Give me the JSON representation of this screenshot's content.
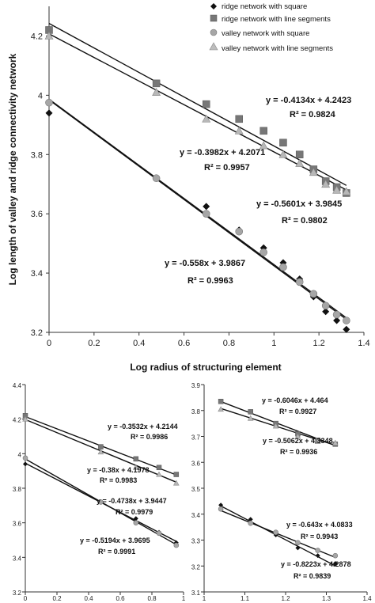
{
  "chart_data": [
    {
      "type": "scatter",
      "title": "",
      "xlabel": "Log radius of structuring element",
      "ylabel": "Log length of valley and ridge connectivity network",
      "xlim": [
        0,
        1.4
      ],
      "ylim": [
        3.2,
        4.3
      ],
      "xticks": [
        "0",
        "0.2",
        "0.4",
        "0.6",
        "0.8",
        "1",
        "1.2",
        "1.4"
      ],
      "yticks": [
        "3.2",
        "3.4",
        "3.6",
        "3.8",
        "4",
        "4.2"
      ],
      "legend": "top-right",
      "series": [
        {
          "name": "ridge network  with square",
          "marker": "diamond",
          "color": "#111111",
          "x": [
            0,
            0.477,
            0.699,
            0.845,
            0.954,
            1.041,
            1.114,
            1.176,
            1.23,
            1.279,
            1.322
          ],
          "y": [
            3.94,
            3.72,
            3.625,
            3.545,
            3.485,
            3.435,
            3.38,
            3.32,
            3.27,
            3.24,
            3.21
          ]
        },
        {
          "name": "ridge network with line segments",
          "marker": "square",
          "color": "#777777",
          "x": [
            0,
            0.477,
            0.699,
            0.845,
            0.954,
            1.041,
            1.114,
            1.176,
            1.23,
            1.279,
            1.322
          ],
          "y": [
            4.22,
            4.04,
            3.97,
            3.92,
            3.88,
            3.84,
            3.8,
            3.75,
            3.71,
            3.69,
            3.67
          ]
        },
        {
          "name": "valley network with square",
          "marker": "circle",
          "color": "#a6a6a6",
          "x": [
            0,
            0.477,
            0.699,
            0.845,
            0.954,
            1.041,
            1.114,
            1.176,
            1.23,
            1.279,
            1.322
          ],
          "y": [
            3.975,
            3.72,
            3.6,
            3.54,
            3.47,
            3.42,
            3.37,
            3.33,
            3.29,
            3.26,
            3.24
          ]
        },
        {
          "name": "valley network with line segments",
          "marker": "triangle",
          "color": "#b8b8b8",
          "x": [
            0,
            0.477,
            0.699,
            0.845,
            0.954,
            1.041,
            1.114,
            1.176,
            1.23,
            1.279,
            1.322
          ],
          "y": [
            4.2,
            4.01,
            3.92,
            3.88,
            3.83,
            3.8,
            3.77,
            3.74,
            3.7,
            3.68,
            3.675
          ]
        }
      ],
      "fits": [
        {
          "slope": -0.4134,
          "intercept": 4.2423,
          "equation": "y = -0.4134x + 4.2423",
          "r2": "R² = 0.9824"
        },
        {
          "slope": -0.3982,
          "intercept": 4.2071,
          "equation": "y = -0.3982x + 4.2071",
          "r2": "R² = 0.9957"
        },
        {
          "slope": -0.5601,
          "intercept": 3.9845,
          "equation": "y = -0.5601x + 3.9845",
          "r2": "R² = 0.9802"
        },
        {
          "slope": -0.558,
          "intercept": 3.9867,
          "equation": "y = -0.558x + 3.9867",
          "r2": "R² = 0.9963"
        }
      ]
    },
    {
      "type": "scatter",
      "title": "",
      "xlim": [
        0,
        1
      ],
      "ylim": [
        3.2,
        4.4
      ],
      "xticks": [
        "0",
        "0.2",
        "0.4",
        "0.6",
        "0.8",
        "1"
      ],
      "yticks": [
        "3.2",
        "3.4",
        "3.6",
        "3.8",
        "4",
        "4.2",
        "4.4"
      ],
      "series": [
        {
          "marker": "diamond",
          "color": "#111111",
          "x": [
            0,
            0.477,
            0.699,
            0.845,
            0.954
          ],
          "y": [
            3.94,
            3.72,
            3.625,
            3.545,
            3.485
          ]
        },
        {
          "marker": "square",
          "color": "#777777",
          "x": [
            0,
            0.477,
            0.699,
            0.845,
            0.954
          ],
          "y": [
            4.22,
            4.04,
            3.97,
            3.92,
            3.88
          ]
        },
        {
          "marker": "circle",
          "color": "#a6a6a6",
          "x": [
            0,
            0.477,
            0.699,
            0.845,
            0.954
          ],
          "y": [
            3.975,
            3.72,
            3.6,
            3.54,
            3.47
          ]
        },
        {
          "marker": "triangle",
          "color": "#b8b8b8",
          "x": [
            0,
            0.477,
            0.699,
            0.845,
            0.954
          ],
          "y": [
            4.2,
            4.01,
            3.92,
            3.88,
            3.83
          ]
        }
      ],
      "fits": [
        {
          "slope": -0.3532,
          "intercept": 4.2144,
          "equation": "y = -0.3532x + 4.2144",
          "r2": "R² = 0.9986"
        },
        {
          "slope": -0.38,
          "intercept": 4.1978,
          "equation": "y = -0.38x + 4.1978",
          "r2": "R² = 0.9983"
        },
        {
          "slope": -0.4738,
          "intercept": 3.9447,
          "equation": "y = -0.4738x + 3.9447",
          "r2": "R² = 0.9979"
        },
        {
          "slope": -0.5194,
          "intercept": 3.9695,
          "equation": "y = -0.5194x + 3.9695",
          "r2": "R² = 0.9991"
        }
      ]
    },
    {
      "type": "scatter",
      "title": "",
      "xlim": [
        1,
        1.4
      ],
      "ylim": [
        3.1,
        3.9
      ],
      "xticks": [
        "1",
        "1.1",
        "1.2",
        "1.3",
        "1.4"
      ],
      "yticks": [
        "3.1",
        "3.2",
        "3.3",
        "3.4",
        "3.5",
        "3.6",
        "3.7",
        "3.8",
        "3.9"
      ],
      "series": [
        {
          "marker": "diamond",
          "color": "#111111",
          "x": [
            1.041,
            1.114,
            1.176,
            1.23,
            1.279,
            1.322
          ],
          "y": [
            3.435,
            3.38,
            3.32,
            3.27,
            3.24,
            3.21
          ]
        },
        {
          "marker": "square",
          "color": "#777777",
          "x": [
            1.041,
            1.114,
            1.176,
            1.23,
            1.279,
            1.322
          ],
          "y": [
            3.835,
            3.795,
            3.75,
            3.71,
            3.685,
            3.67
          ]
        },
        {
          "marker": "circle",
          "color": "#a6a6a6",
          "x": [
            1.041,
            1.114,
            1.176,
            1.23,
            1.279,
            1.322
          ],
          "y": [
            3.42,
            3.365,
            3.33,
            3.29,
            3.26,
            3.24
          ]
        },
        {
          "marker": "triangle",
          "color": "#b8b8b8",
          "x": [
            1.041,
            1.114,
            1.176,
            1.23,
            1.279,
            1.322
          ],
          "y": [
            3.805,
            3.77,
            3.74,
            3.7,
            3.68,
            3.675
          ]
        }
      ],
      "fits": [
        {
          "slope": -0.6046,
          "intercept": 4.464,
          "equation": "y = -0.6046x + 4.464",
          "r2": "R² = 0.9927"
        },
        {
          "slope": -0.5062,
          "intercept": 4.3348,
          "equation": "y = -0.5062x + 4.3348",
          "r2": "R² = 0.9936"
        },
        {
          "slope": -0.643,
          "intercept": 4.0833,
          "equation": "y = -0.643x + 4.0833",
          "r2": "R² = 0.9943"
        },
        {
          "slope": -0.8223,
          "intercept": 4.2878,
          "equation": "y = -0.8223x + 4.2878",
          "r2": "R² = 0.9839"
        }
      ]
    }
  ]
}
